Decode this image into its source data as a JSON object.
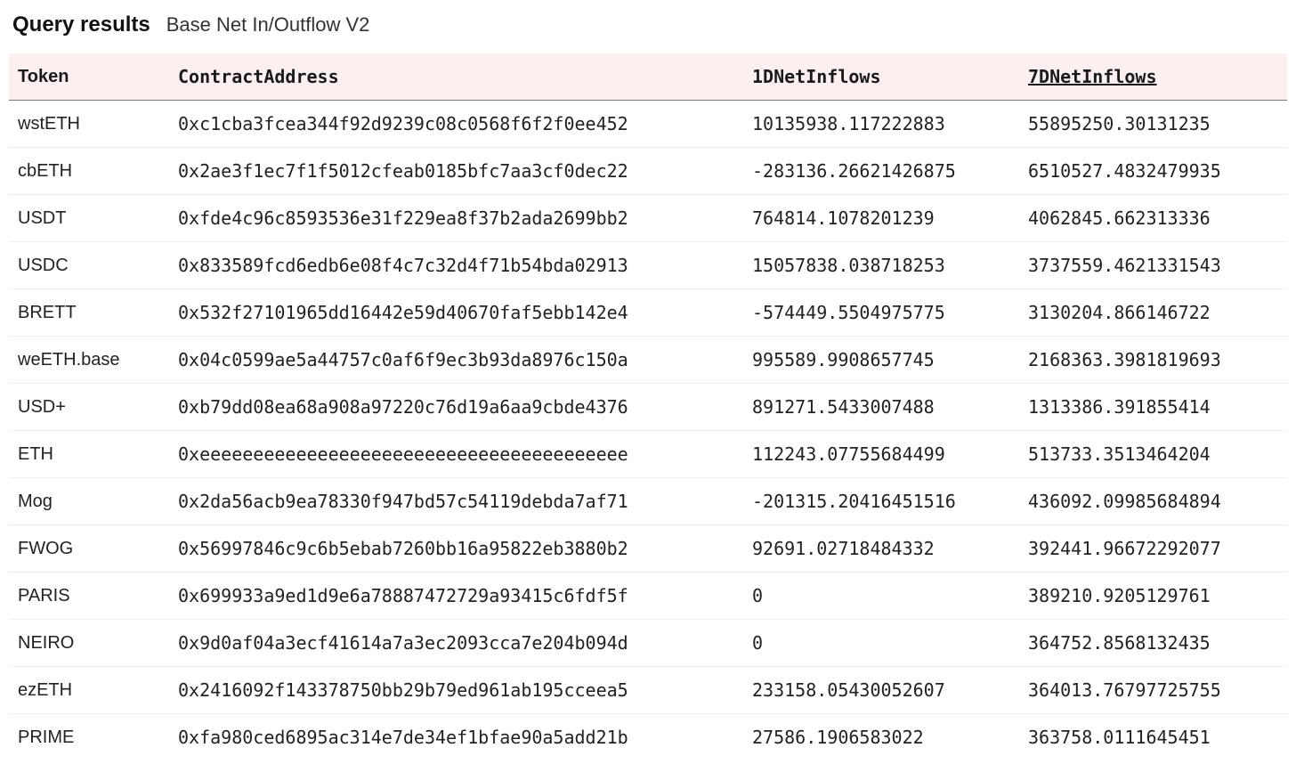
{
  "header": {
    "title": "Query results",
    "subtitle": "Base Net In/Outflow V2"
  },
  "table": {
    "header_bg": "#fbf0ef",
    "border_color": "#eeeeee",
    "header_border_color": "#777777",
    "sorted_column_index": 3,
    "columns": [
      {
        "key": "token",
        "label": "Token"
      },
      {
        "key": "addr",
        "label": "ContractAddress"
      },
      {
        "key": "in1",
        "label": "1DNetInflows"
      },
      {
        "key": "in7",
        "label": "7DNetInflows"
      }
    ],
    "rows": [
      {
        "token": "wstETH",
        "addr": "0xc1cba3fcea344f92d9239c08c0568f6f2f0ee452",
        "in1": "10135938.117222883",
        "in7": "55895250.30131235"
      },
      {
        "token": "cbETH",
        "addr": "0x2ae3f1ec7f1f5012cfeab0185bfc7aa3cf0dec22",
        "in1": "-283136.26621426875",
        "in7": "6510527.4832479935"
      },
      {
        "token": "USDT",
        "addr": "0xfde4c96c8593536e31f229ea8f37b2ada2699bb2",
        "in1": "764814.1078201239",
        "in7": "4062845.662313336"
      },
      {
        "token": "USDC",
        "addr": "0x833589fcd6edb6e08f4c7c32d4f71b54bda02913",
        "in1": "15057838.038718253",
        "in7": "3737559.4621331543"
      },
      {
        "token": "BRETT",
        "addr": "0x532f27101965dd16442e59d40670faf5ebb142e4",
        "in1": "-574449.5504975775",
        "in7": "3130204.866146722"
      },
      {
        "token": "weETH.base",
        "addr": "0x04c0599ae5a44757c0af6f9ec3b93da8976c150a",
        "in1": "995589.9908657745",
        "in7": "2168363.3981819693"
      },
      {
        "token": "USD+",
        "addr": "0xb79dd08ea68a908a97220c76d19a6aa9cbde4376",
        "in1": "891271.5433007488",
        "in7": "1313386.391855414"
      },
      {
        "token": "ETH",
        "addr": "0xeeeeeeeeeeeeeeeeeeeeeeeeeeeeeeeeeeeeeeee",
        "in1": "112243.07755684499",
        "in7": "513733.3513464204"
      },
      {
        "token": "Mog",
        "addr": "0x2da56acb9ea78330f947bd57c54119debda7af71",
        "in1": "-201315.20416451516",
        "in7": "436092.09985684894"
      },
      {
        "token": "FWOG",
        "addr": "0x56997846c9c6b5ebab7260bb16a95822eb3880b2",
        "in1": "92691.02718484332",
        "in7": "392441.96672292077"
      },
      {
        "token": "PARIS",
        "addr": "0x699933a9ed1d9e6a78887472729a93415c6fdf5f",
        "in1": "0",
        "in7": "389210.9205129761"
      },
      {
        "token": "NEIRO",
        "addr": "0x9d0af04a3ecf41614a7a3ec2093cca7e204b094d",
        "in1": "0",
        "in7": "364752.8568132435"
      },
      {
        "token": "ezETH",
        "addr": "0x2416092f143378750bb29b79ed961ab195cceea5",
        "in1": "233158.05430052607",
        "in7": "364013.76797725755"
      },
      {
        "token": "PRIME",
        "addr": "0xfa980ced6895ac314e7de34ef1bfae90a5add21b",
        "in1": "27586.1906583022",
        "in7": "363758.0111645451"
      }
    ]
  }
}
